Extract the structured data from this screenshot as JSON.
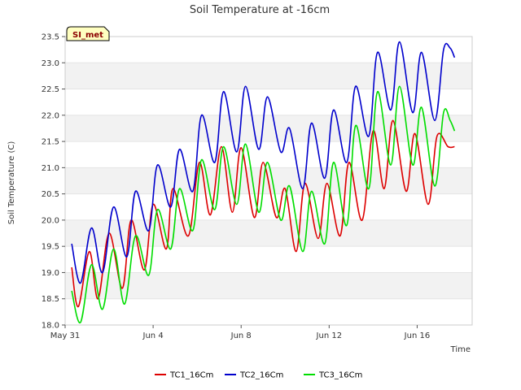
{
  "chart_data": {
    "type": "line",
    "title": "Soil Temperature at -16cm",
    "xlabel": "Time",
    "ylabel": "Soil Temperature (C)",
    "badge": "SI_met",
    "ylim": [
      18.0,
      23.5
    ],
    "yticks": [
      18.0,
      18.5,
      19.0,
      19.5,
      20.0,
      20.5,
      21.0,
      21.5,
      22.0,
      22.5,
      23.0,
      23.5
    ],
    "ytick_labels": [
      "18.0",
      "18.5",
      "19.0",
      "19.5",
      "20.0",
      "20.5",
      "21.0",
      "21.5",
      "22.0",
      "22.5",
      "23.0",
      "23.5"
    ],
    "xlim": [
      0,
      18.5
    ],
    "xticks": [
      0,
      4,
      8,
      12,
      16
    ],
    "xtick_labels": [
      "May 31",
      "Jun 4",
      "Jun 8",
      "Jun 12",
      "Jun 16"
    ],
    "x_units": "days since May 31",
    "grid": "horizontal bands",
    "legend_position": "bottom-center",
    "series": [
      {
        "name": "TC1_16Cm",
        "color": "#dd0000",
        "x": [
          0.3,
          0.6,
          1.1,
          1.5,
          2.0,
          2.6,
          3.0,
          3.6,
          4.0,
          4.6,
          4.9,
          5.6,
          6.1,
          6.6,
          7.1,
          7.6,
          8.0,
          8.6,
          9.0,
          9.6,
          10.0,
          10.5,
          10.9,
          11.5,
          11.9,
          12.5,
          12.9,
          13.5,
          14.0,
          14.5,
          14.9,
          15.5,
          15.9,
          16.5,
          16.9,
          17.4,
          17.7
        ],
        "y": [
          19.1,
          18.35,
          19.4,
          18.5,
          19.75,
          18.7,
          20.0,
          19.05,
          20.3,
          19.45,
          20.6,
          19.7,
          21.1,
          20.1,
          21.4,
          20.15,
          21.38,
          20.05,
          21.1,
          20.05,
          20.6,
          19.4,
          20.7,
          19.65,
          20.7,
          19.7,
          21.1,
          20.0,
          21.7,
          20.6,
          21.9,
          20.55,
          21.65,
          20.3,
          21.6,
          21.4,
          21.4
        ]
      },
      {
        "name": "TC2_16Cm",
        "color": "#0000cc",
        "x": [
          0.3,
          0.7,
          1.2,
          1.7,
          2.2,
          2.8,
          3.2,
          3.8,
          4.2,
          4.8,
          5.2,
          5.8,
          6.2,
          6.8,
          7.2,
          7.8,
          8.2,
          8.8,
          9.2,
          9.8,
          10.2,
          10.8,
          11.2,
          11.8,
          12.2,
          12.8,
          13.2,
          13.8,
          14.2,
          14.8,
          15.2,
          15.8,
          16.2,
          16.8,
          17.2,
          17.5,
          17.7
        ],
        "y": [
          19.55,
          18.8,
          19.85,
          19.0,
          20.25,
          19.3,
          20.55,
          19.8,
          21.05,
          20.25,
          21.35,
          20.55,
          22.0,
          21.1,
          22.45,
          21.3,
          22.55,
          21.35,
          22.35,
          21.3,
          21.75,
          20.6,
          21.85,
          20.8,
          22.1,
          21.1,
          22.55,
          21.6,
          23.2,
          22.1,
          23.4,
          22.05,
          23.2,
          21.9,
          23.25,
          23.28,
          23.1
        ]
      },
      {
        "name": "TC3_16Cm",
        "color": "#00dd00",
        "x": [
          0.3,
          0.7,
          1.2,
          1.7,
          2.2,
          2.7,
          3.2,
          3.8,
          4.2,
          4.8,
          5.2,
          5.8,
          6.2,
          6.8,
          7.2,
          7.8,
          8.2,
          8.8,
          9.2,
          9.8,
          10.2,
          10.8,
          11.2,
          11.8,
          12.2,
          12.8,
          13.2,
          13.8,
          14.2,
          14.8,
          15.2,
          15.8,
          16.2,
          16.8,
          17.2,
          17.5,
          17.7
        ],
        "y": [
          18.65,
          18.05,
          19.15,
          18.3,
          19.45,
          18.4,
          19.7,
          18.95,
          20.2,
          19.45,
          20.6,
          19.8,
          21.15,
          20.2,
          21.4,
          20.3,
          21.45,
          20.15,
          21.1,
          20.0,
          20.65,
          19.4,
          20.55,
          19.55,
          21.1,
          19.9,
          21.8,
          20.6,
          22.45,
          21.05,
          22.55,
          21.05,
          22.15,
          20.65,
          22.05,
          21.9,
          21.7
        ]
      }
    ]
  }
}
